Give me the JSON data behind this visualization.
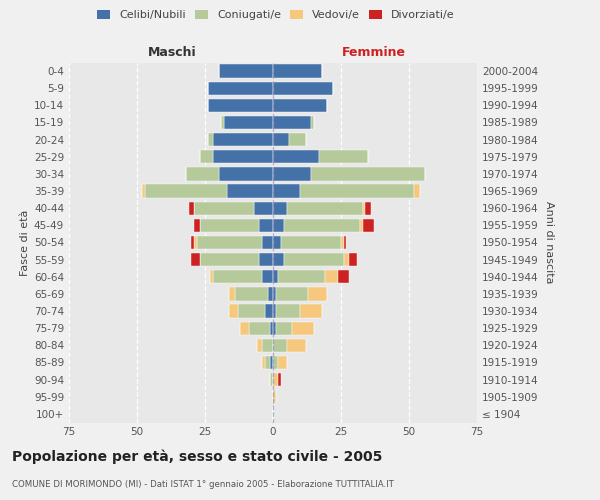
{
  "age_groups": [
    "0-4",
    "5-9",
    "10-14",
    "15-19",
    "20-24",
    "25-29",
    "30-34",
    "35-39",
    "40-44",
    "45-49",
    "50-54",
    "55-59",
    "60-64",
    "65-69",
    "70-74",
    "75-79",
    "80-84",
    "85-89",
    "90-94",
    "95-99",
    "100+"
  ],
  "birth_years": [
    "2000-2004",
    "1995-1999",
    "1990-1994",
    "1985-1989",
    "1980-1984",
    "1975-1979",
    "1970-1974",
    "1965-1969",
    "1960-1964",
    "1955-1959",
    "1950-1954",
    "1945-1949",
    "1940-1944",
    "1935-1939",
    "1930-1934",
    "1925-1929",
    "1920-1924",
    "1915-1919",
    "1910-1914",
    "1905-1909",
    "≤ 1904"
  ],
  "maschi": {
    "celibi": [
      20,
      24,
      24,
      18,
      22,
      22,
      20,
      17,
      7,
      5,
      4,
      5,
      4,
      2,
      3,
      1,
      0,
      1,
      0,
      0,
      0
    ],
    "coniugati": [
      0,
      0,
      0,
      1,
      2,
      5,
      12,
      30,
      22,
      22,
      24,
      22,
      18,
      12,
      10,
      8,
      4,
      2,
      1,
      0,
      0
    ],
    "vedovi": [
      0,
      0,
      0,
      0,
      0,
      0,
      0,
      1,
      0,
      0,
      1,
      0,
      1,
      2,
      3,
      3,
      2,
      1,
      0,
      0,
      0
    ],
    "divorziati": [
      0,
      0,
      0,
      0,
      0,
      0,
      0,
      0,
      2,
      2,
      1,
      3,
      0,
      0,
      0,
      0,
      0,
      0,
      0,
      0,
      0
    ]
  },
  "femmine": {
    "nubili": [
      18,
      22,
      20,
      14,
      6,
      17,
      14,
      10,
      5,
      4,
      3,
      4,
      2,
      1,
      1,
      1,
      0,
      0,
      0,
      0,
      0
    ],
    "coniugate": [
      0,
      0,
      0,
      1,
      6,
      18,
      42,
      42,
      28,
      28,
      22,
      22,
      17,
      12,
      9,
      6,
      5,
      2,
      0,
      0,
      0
    ],
    "vedove": [
      0,
      0,
      0,
      0,
      0,
      0,
      0,
      2,
      1,
      1,
      1,
      2,
      5,
      7,
      8,
      8,
      7,
      3,
      2,
      1,
      0
    ],
    "divorziate": [
      0,
      0,
      0,
      0,
      0,
      0,
      0,
      0,
      2,
      4,
      1,
      3,
      4,
      0,
      0,
      0,
      0,
      0,
      1,
      0,
      0
    ]
  },
  "colors": {
    "celibi": "#4472a8",
    "coniugati": "#b5c99a",
    "vedovi": "#f5c87d",
    "divorziati": "#cc2222"
  },
  "xlim": 75,
  "title": "Popolazione per età, sesso e stato civile - 2005",
  "subtitle": "COMUNE DI MORIMONDO (MI) - Dati ISTAT 1° gennaio 2005 - Elaborazione TUTTITALIA.IT",
  "ylabel_left": "Fasce di età",
  "ylabel_right": "Anni di nascita",
  "xlabel_left": "Maschi",
  "xlabel_right": "Femmine",
  "legend_labels": [
    "Celibi/Nubili",
    "Coniugati/e",
    "Vedovi/e",
    "Divorziati/e"
  ],
  "bg_color": "#f0f0f0",
  "plot_bg": "#e8e8e8"
}
